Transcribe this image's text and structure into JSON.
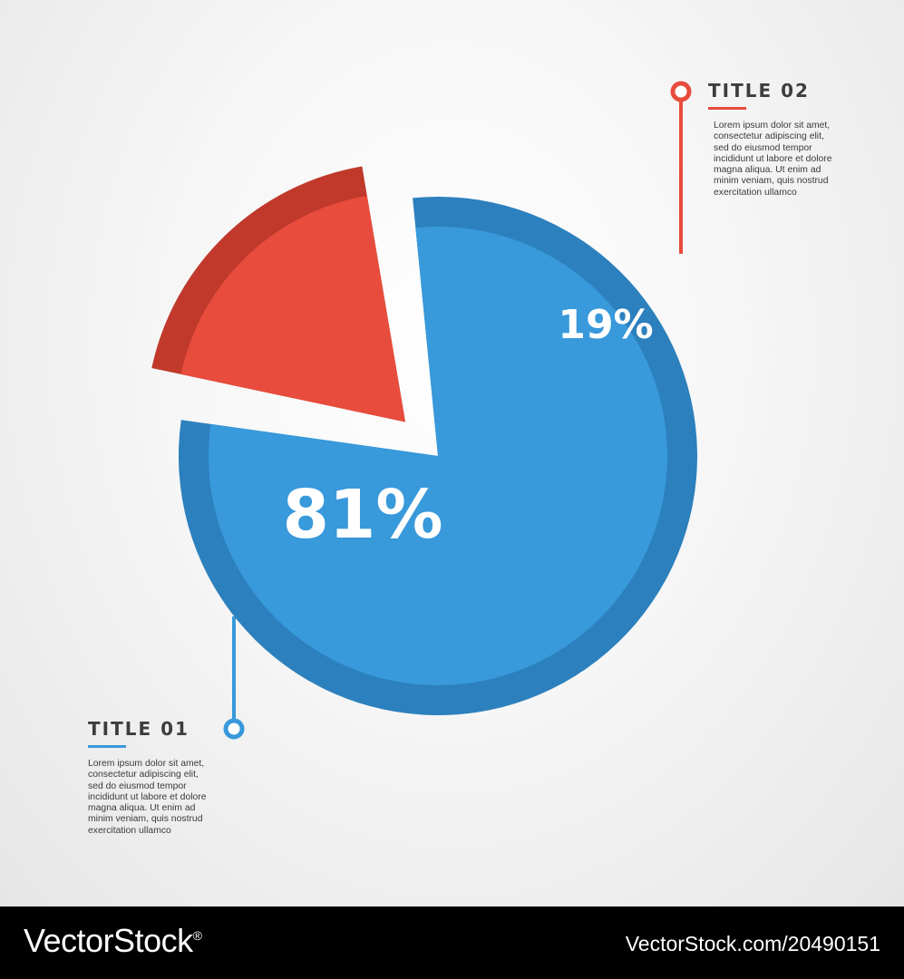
{
  "chart_data": {
    "type": "pie",
    "slices": [
      {
        "label": "81%",
        "value": 81,
        "color": "#3899db",
        "rim_color": "#2c80bd",
        "exploded": false
      },
      {
        "label": "19%",
        "value": 19,
        "color": "#e74c3c",
        "rim_color": "#c0392b",
        "exploded": true
      }
    ]
  },
  "callouts": [
    {
      "title": "TITLE 01",
      "color": "#3899db",
      "text": "Lorem ipsum dolor sit amet, consectetur adipiscing elit, sed do eiusmod tempor incididunt ut labore et dolore magna aliqua. Ut enim ad minim veniam, quis nostrud exercitation ullamco"
    },
    {
      "title": "TITLE 02",
      "color": "#e74c3c",
      "text": "Lorem ipsum dolor sit amet, consectetur adipiscing elit, sed do eiusmod tempor incididunt ut labore et dolore magna aliqua. Ut enim ad minim veniam, quis nostrud exercitation ullamco"
    }
  ],
  "footer": {
    "brand": "VectorStock",
    "brand_mark": "®",
    "image_id": "VectorStock.com/20490151"
  }
}
